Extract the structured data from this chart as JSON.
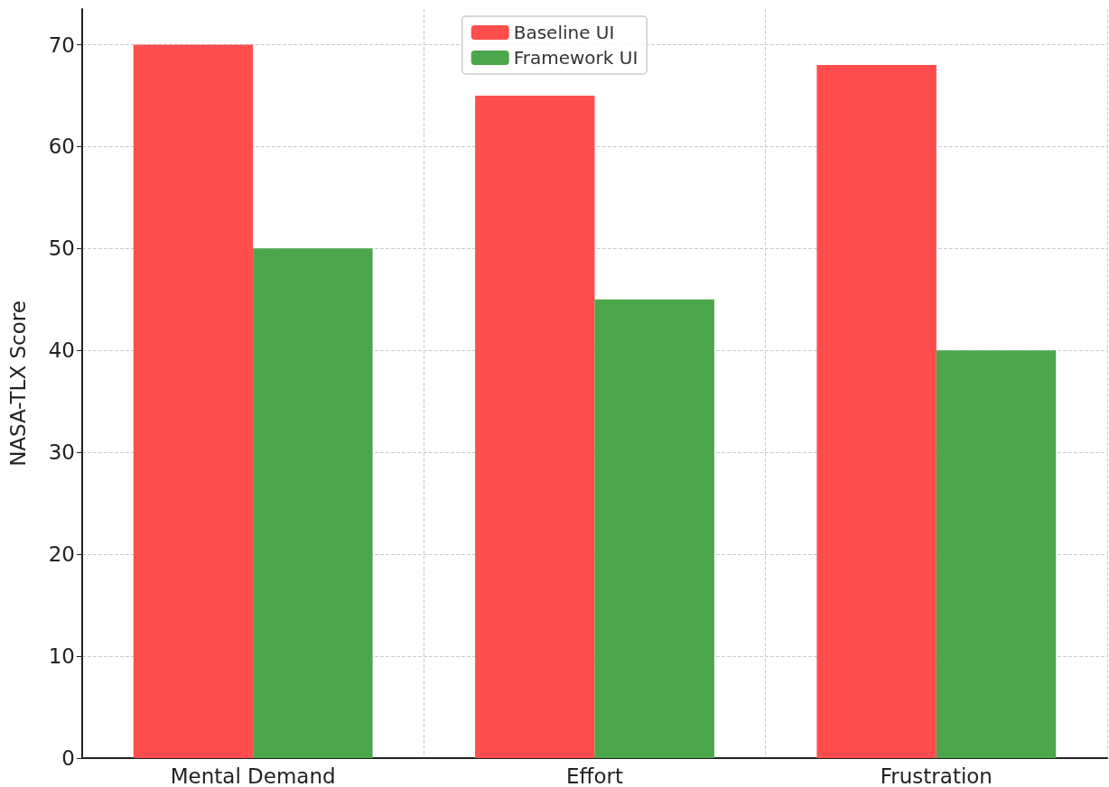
{
  "chart_data": {
    "type": "bar",
    "ylabel": "NASA-TLX Score",
    "categories": [
      "Mental Demand",
      "Effort",
      "Frustration"
    ],
    "series": [
      {
        "name": "Baseline UI",
        "color": "#ff4d4d",
        "values": [
          70,
          65,
          68
        ]
      },
      {
        "name": "Framework UI",
        "color": "#4ca64c",
        "values": [
          50,
          45,
          40
        ]
      }
    ],
    "ylim": [
      0,
      73.5
    ],
    "yticks": [
      0,
      10,
      20,
      30,
      40,
      50,
      60,
      70
    ],
    "grid": true,
    "legend": "top"
  }
}
